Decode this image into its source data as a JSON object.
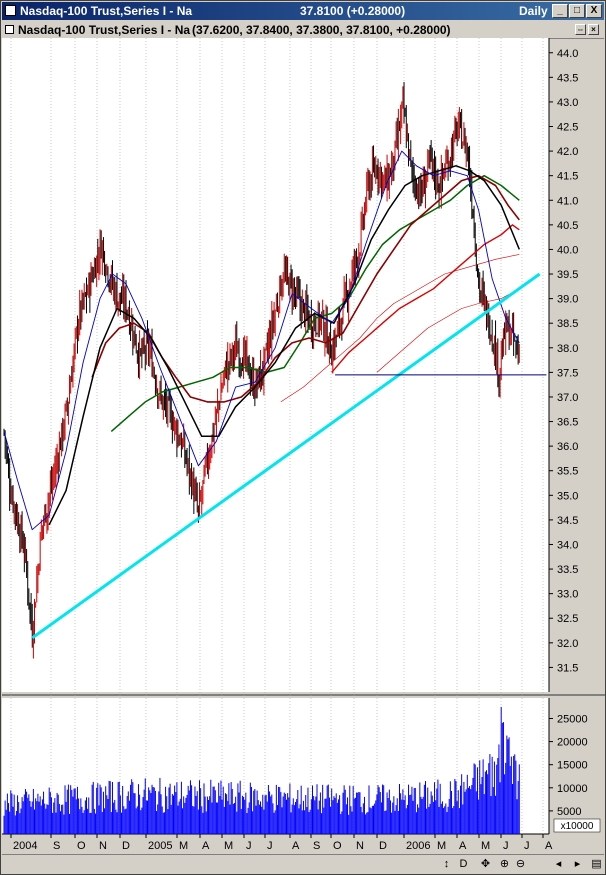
{
  "window": {
    "title": "Nasdaq-100 Trust,Series I - Na",
    "last_value": "37.8100 (+0.28000)",
    "period": "Daily",
    "controls": {
      "minimize": "_",
      "maximize": "□",
      "close": "X"
    }
  },
  "legend_bar": {
    "series_label": "Nasdaq-100 Trust,Series I - Na",
    "ohlc": "(37.6200, 37.8400, 37.3800, 37.8100, +0.28000)",
    "controls": {
      "restore": "⇔",
      "close": "×"
    }
  },
  "navigation": {
    "buttons": [
      {
        "label": "↕",
        "icon": "scroll-icon"
      },
      {
        "label": "D",
        "icon": "period-icon"
      },
      {
        "label": "✥",
        "icon": "pan-icon"
      },
      {
        "label": "⊕",
        "icon": "crosshair-icon"
      },
      {
        "label": "⊖",
        "icon": "zoom-icon"
      },
      {
        "label": "◂",
        "icon": "scroll-left-icon"
      },
      {
        "label": "▸",
        "icon": "scroll-right-icon"
      },
      {
        "label": "▤",
        "icon": "scroll-end-icon"
      }
    ]
  },
  "chart_data": {
    "type": "line",
    "price_axis": {
      "ylim": [
        31.0,
        44.3
      ],
      "ticks": [
        "31.5",
        "32.0",
        "32.5",
        "33.0",
        "33.5",
        "34.0",
        "34.5",
        "35.0",
        "35.5",
        "36.0",
        "36.5",
        "37.0",
        "37.5",
        "38.0",
        "38.5",
        "39.0",
        "39.5",
        "40.0",
        "40.5",
        "41.0",
        "41.5",
        "42.0",
        "42.5",
        "43.0",
        "43.5",
        "44.0"
      ]
    },
    "volume_axis": {
      "ylim": [
        0,
        29000
      ],
      "ticks": [
        "5000",
        "10000",
        "15000",
        "20000",
        "25000"
      ],
      "unit_label": "x10000"
    },
    "x_labels": [
      "2004",
      "S",
      "O",
      "N",
      "D",
      "2005",
      "M",
      "A",
      "M",
      "J",
      "J",
      "A",
      "S",
      "O",
      "N",
      "D",
      "2006",
      "M",
      "A",
      "M",
      "J",
      "J",
      "A"
    ],
    "grid": true,
    "colors": {
      "price": "#cc0000",
      "price_down": "#000000",
      "ma_fast": "#0000cc",
      "ma_black": "#000000",
      "ma_green": "#006600",
      "ma_darkred": "#8b0000",
      "ma_red": "#dd0000",
      "trendline": "#00e5ee",
      "support": "#000080",
      "volume": "#0000ff"
    },
    "price_anchors": [
      [
        0,
        36.3
      ],
      [
        5,
        35.2
      ],
      [
        12,
        34.5
      ],
      [
        18,
        33.9
      ],
      [
        25,
        32.2
      ],
      [
        33,
        34.3
      ],
      [
        45,
        35.5
      ],
      [
        56,
        36.8
      ],
      [
        66,
        38.6
      ],
      [
        76,
        39.3
      ],
      [
        86,
        40.1
      ],
      [
        94,
        39.4
      ],
      [
        101,
        39.0
      ],
      [
        108,
        38.9
      ],
      [
        120,
        37.8
      ],
      [
        128,
        38.0
      ],
      [
        138,
        37.0
      ],
      [
        148,
        36.6
      ],
      [
        158,
        36.0
      ],
      [
        166,
        35.3
      ],
      [
        172,
        34.6
      ],
      [
        179,
        35.6
      ],
      [
        187,
        36.5
      ],
      [
        195,
        37.5
      ],
      [
        205,
        38.0
      ],
      [
        214,
        37.7
      ],
      [
        222,
        37.2
      ],
      [
        230,
        37.6
      ],
      [
        237,
        38.4
      ],
      [
        247,
        39.5
      ],
      [
        255,
        39.2
      ],
      [
        264,
        38.8
      ],
      [
        272,
        38.5
      ],
      [
        281,
        38.6
      ],
      [
        290,
        37.9
      ],
      [
        298,
        38.6
      ],
      [
        307,
        39.4
      ],
      [
        315,
        40.1
      ],
      [
        322,
        41.3
      ],
      [
        330,
        41.7
      ],
      [
        338,
        41.3
      ],
      [
        345,
        41.8
      ],
      [
        353,
        42.9
      ],
      [
        361,
        41.5
      ],
      [
        369,
        41.1
      ],
      [
        377,
        41.8
      ],
      [
        385,
        41.3
      ],
      [
        393,
        41.8
      ],
      [
        402,
        42.5
      ],
      [
        410,
        42.0
      ],
      [
        415,
        40.8
      ],
      [
        420,
        39.3
      ],
      [
        426,
        38.8
      ],
      [
        432,
        38.3
      ],
      [
        438,
        37.5
      ],
      [
        444,
        38.4
      ],
      [
        450,
        38.2
      ],
      [
        456,
        37.81
      ]
    ],
    "ma_fast": [
      [
        0,
        36.3
      ],
      [
        12,
        35.3
      ],
      [
        25,
        34.3
      ],
      [
        40,
        34.6
      ],
      [
        55,
        35.9
      ],
      [
        70,
        37.7
      ],
      [
        85,
        39.0
      ],
      [
        96,
        39.5
      ],
      [
        108,
        39.3
      ],
      [
        122,
        38.6
      ],
      [
        138,
        37.6
      ],
      [
        155,
        36.6
      ],
      [
        172,
        35.6
      ],
      [
        188,
        36.1
      ],
      [
        205,
        37.2
      ],
      [
        222,
        37.3
      ],
      [
        240,
        38.0
      ],
      [
        255,
        39.1
      ],
      [
        272,
        38.8
      ],
      [
        290,
        38.5
      ],
      [
        305,
        39.0
      ],
      [
        320,
        40.1
      ],
      [
        338,
        41.3
      ],
      [
        352,
        42.0
      ],
      [
        365,
        41.7
      ],
      [
        380,
        41.5
      ],
      [
        395,
        41.6
      ],
      [
        410,
        41.5
      ],
      [
        420,
        40.8
      ],
      [
        432,
        39.4
      ],
      [
        444,
        38.6
      ],
      [
        456,
        38.1
      ]
    ],
    "ma_black": [
      [
        40,
        34.4
      ],
      [
        55,
        35.1
      ],
      [
        70,
        36.6
      ],
      [
        85,
        38.0
      ],
      [
        100,
        38.8
      ],
      [
        115,
        38.6
      ],
      [
        130,
        38.2
      ],
      [
        145,
        37.6
      ],
      [
        160,
        36.9
      ],
      [
        175,
        36.2
      ],
      [
        190,
        36.2
      ],
      [
        205,
        36.8
      ],
      [
        222,
        37.2
      ],
      [
        240,
        37.7
      ],
      [
        258,
        38.4
      ],
      [
        275,
        38.7
      ],
      [
        292,
        38.5
      ],
      [
        310,
        39.3
      ],
      [
        325,
        40.2
      ],
      [
        340,
        40.8
      ],
      [
        355,
        41.3
      ],
      [
        370,
        41.5
      ],
      [
        385,
        41.6
      ],
      [
        400,
        41.7
      ],
      [
        412,
        41.6
      ],
      [
        425,
        41.4
      ],
      [
        440,
        40.9
      ],
      [
        456,
        40.0
      ]
    ],
    "ma_green": [
      [
        95,
        36.3
      ],
      [
        110,
        36.6
      ],
      [
        125,
        36.9
      ],
      [
        140,
        37.1
      ],
      [
        155,
        37.2
      ],
      [
        170,
        37.3
      ],
      [
        185,
        37.4
      ],
      [
        200,
        37.6
      ],
      [
        215,
        37.6
      ],
      [
        232,
        37.5
      ],
      [
        248,
        37.6
      ],
      [
        262,
        38.1
      ],
      [
        275,
        38.6
      ],
      [
        290,
        38.7
      ],
      [
        305,
        39.0
      ],
      [
        320,
        39.6
      ],
      [
        335,
        40.1
      ],
      [
        350,
        40.4
      ],
      [
        365,
        40.6
      ],
      [
        380,
        40.8
      ],
      [
        395,
        41.0
      ],
      [
        410,
        41.3
      ],
      [
        425,
        41.5
      ],
      [
        440,
        41.3
      ],
      [
        456,
        41.0
      ]
    ],
    "ma_darkred": [
      [
        78,
        37.4
      ],
      [
        90,
        38.1
      ],
      [
        102,
        38.4
      ],
      [
        115,
        38.5
      ],
      [
        128,
        38.3
      ],
      [
        140,
        37.8
      ],
      [
        152,
        37.4
      ],
      [
        165,
        37.0
      ],
      [
        180,
        36.9
      ],
      [
        195,
        36.9
      ],
      [
        210,
        37.0
      ],
      [
        225,
        37.3
      ],
      [
        240,
        37.8
      ],
      [
        255,
        38.1
      ],
      [
        270,
        38.2
      ],
      [
        285,
        38.1
      ],
      [
        300,
        38.3
      ],
      [
        315,
        38.9
      ],
      [
        330,
        39.5
      ],
      [
        345,
        40.0
      ],
      [
        360,
        40.5
      ],
      [
        375,
        40.8
      ],
      [
        390,
        41.1
      ],
      [
        405,
        41.4
      ],
      [
        420,
        41.5
      ],
      [
        435,
        41.3
      ],
      [
        446,
        40.9
      ],
      [
        456,
        40.6
      ]
    ],
    "ma_red": [
      [
        290,
        37.5
      ],
      [
        305,
        37.9
      ],
      [
        320,
        38.2
      ],
      [
        335,
        38.5
      ],
      [
        350,
        38.8
      ],
      [
        365,
        39.0
      ],
      [
        380,
        39.2
      ],
      [
        395,
        39.5
      ],
      [
        410,
        39.8
      ],
      [
        425,
        40.1
      ],
      [
        440,
        40.3
      ],
      [
        450,
        40.5
      ],
      [
        456,
        40.4
      ]
    ],
    "ma_red_thin": [
      [
        245,
        36.9
      ],
      [
        265,
        37.2
      ],
      [
        285,
        37.6
      ],
      [
        300,
        37.9
      ],
      [
        315,
        38.2
      ],
      [
        330,
        38.6
      ],
      [
        345,
        38.9
      ],
      [
        360,
        39.1
      ],
      [
        375,
        39.3
      ],
      [
        390,
        39.5
      ],
      [
        405,
        39.6
      ],
      [
        420,
        39.7
      ],
      [
        435,
        39.8
      ],
      [
        456,
        39.9
      ]
    ],
    "ma_red_thin2": [
      [
        330,
        37.5
      ],
      [
        345,
        37.8
      ],
      [
        360,
        38.1
      ],
      [
        375,
        38.4
      ],
      [
        390,
        38.6
      ],
      [
        405,
        38.8
      ],
      [
        420,
        38.9
      ],
      [
        440,
        39.0
      ],
      [
        456,
        39.2
      ]
    ],
    "trendline": {
      "from": [
        25,
        32.1
      ],
      "to": [
        474,
        39.5
      ]
    },
    "support_line": {
      "from": [
        293,
        37.45
      ],
      "to": [
        480,
        37.45
      ]
    },
    "volume_levels": [
      [
        0,
        6500
      ],
      [
        60,
        7500
      ],
      [
        120,
        8500
      ],
      [
        200,
        8000
      ],
      [
        280,
        7500
      ],
      [
        340,
        7500
      ],
      [
        400,
        8500
      ],
      [
        430,
        13000
      ],
      [
        445,
        16000
      ],
      [
        456,
        11000
      ]
    ]
  }
}
